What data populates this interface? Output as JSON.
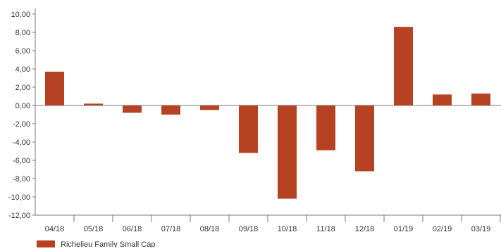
{
  "chart_data": {
    "type": "bar",
    "categories": [
      "04/18",
      "05/18",
      "06/18",
      "07/18",
      "08/18",
      "09/18",
      "10/18",
      "11/18",
      "12/18",
      "01/19",
      "02/19",
      "03/19"
    ],
    "series": [
      {
        "name": "Richelieu Family Small Cap",
        "values": [
          3.7,
          0.2,
          -0.8,
          -1.0,
          -0.5,
          -5.2,
          -10.2,
          -4.9,
          -7.2,
          8.6,
          1.2,
          1.3
        ],
        "color": "#b54222"
      }
    ],
    "ylim": [
      -12,
      10
    ],
    "yticks": [
      -12,
      -10,
      -8,
      -6,
      -4,
      -2,
      0,
      2,
      4,
      6,
      8,
      10
    ],
    "ytick_labels": [
      "-12,00",
      "-10,00",
      "-8,00",
      "-6,00",
      "-4,00",
      "-2,00",
      "0,00",
      "2,00",
      "4,00",
      "6,00",
      "8,00",
      "10,00"
    ],
    "grid": false,
    "legend_position": "bottom-left",
    "axis_color": "#7a7a7a"
  }
}
